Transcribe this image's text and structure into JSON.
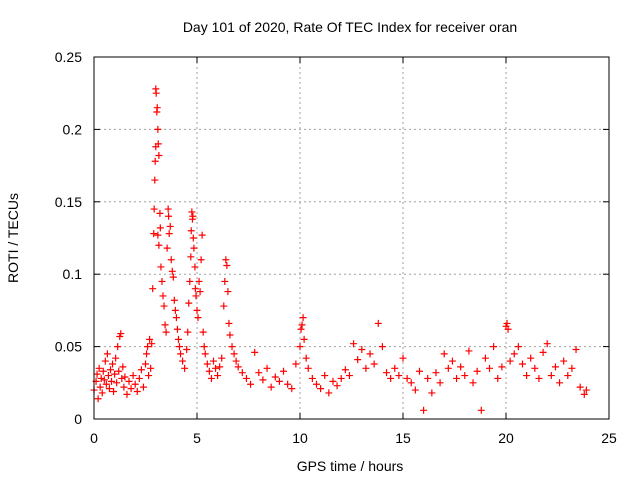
{
  "chart_data": {
    "type": "scatter",
    "title": "Day 101 of 2020, Rate Of TEC Index for receiver oran",
    "xlabel": "GPS time / hours",
    "ylabel": "ROTI / TECUs",
    "xlim": [
      0,
      25
    ],
    "ylim": [
      0,
      0.25
    ],
    "x_ticks": [
      0,
      5,
      10,
      15,
      20,
      25
    ],
    "x_tick_labels": [
      "0",
      "5",
      "10",
      "15",
      "20",
      "25"
    ],
    "y_ticks": [
      0,
      0.05,
      0.1,
      0.15,
      0.2,
      0.25
    ],
    "y_tick_labels": [
      "0",
      "0.05",
      "0.1",
      "0.15",
      "0.2",
      "0.25"
    ],
    "grid": true,
    "marker": "+",
    "series": [
      {
        "color": "#ff0000",
        "points": [
          [
            0.0,
            0.02
          ],
          [
            0.1,
            0.026
          ],
          [
            0.15,
            0.031
          ],
          [
            0.2,
            0.014
          ],
          [
            0.25,
            0.035
          ],
          [
            0.3,
            0.022
          ],
          [
            0.35,
            0.028
          ],
          [
            0.4,
            0.018
          ],
          [
            0.45,
            0.033
          ],
          [
            0.5,
            0.027
          ],
          [
            0.55,
            0.04
          ],
          [
            0.6,
            0.024
          ],
          [
            0.65,
            0.045
          ],
          [
            0.7,
            0.03
          ],
          [
            0.75,
            0.021
          ],
          [
            0.8,
            0.034
          ],
          [
            0.85,
            0.026
          ],
          [
            0.9,
            0.038
          ],
          [
            0.95,
            0.019
          ],
          [
            1.0,
            0.031
          ],
          [
            1.05,
            0.042
          ],
          [
            1.1,
            0.025
          ],
          [
            1.15,
            0.05
          ],
          [
            1.2,
            0.033
          ],
          [
            1.25,
            0.057
          ],
          [
            1.3,
            0.059
          ],
          [
            1.35,
            0.028
          ],
          [
            1.4,
            0.036
          ],
          [
            1.45,
            0.022
          ],
          [
            1.5,
            0.029
          ],
          [
            1.6,
            0.017
          ],
          [
            1.7,
            0.026
          ],
          [
            1.8,
            0.021
          ],
          [
            1.9,
            0.03
          ],
          [
            2.0,
            0.024
          ],
          [
            2.1,
            0.019
          ],
          [
            2.2,
            0.028
          ],
          [
            2.3,
            0.034
          ],
          [
            2.4,
            0.022
          ],
          [
            2.5,
            0.038
          ],
          [
            2.55,
            0.045
          ],
          [
            2.6,
            0.05
          ],
          [
            2.65,
            0.03
          ],
          [
            2.7,
            0.055
          ],
          [
            2.75,
            0.035
          ],
          [
            2.8,
            0.052
          ],
          [
            2.85,
            0.09
          ],
          [
            2.9,
            0.128
          ],
          [
            2.92,
            0.145
          ],
          [
            2.95,
            0.165
          ],
          [
            2.97,
            0.178
          ],
          [
            3.0,
            0.188
          ],
          [
            3.0,
            0.228
          ],
          [
            3.02,
            0.225
          ],
          [
            3.05,
            0.212
          ],
          [
            3.07,
            0.215
          ],
          [
            3.1,
            0.2
          ],
          [
            3.12,
            0.19
          ],
          [
            3.15,
            0.182
          ],
          [
            3.1,
            0.127
          ],
          [
            3.15,
            0.12
          ],
          [
            3.2,
            0.142
          ],
          [
            3.22,
            0.132
          ],
          [
            3.25,
            0.105
          ],
          [
            3.3,
            0.095
          ],
          [
            3.35,
            0.085
          ],
          [
            3.4,
            0.078
          ],
          [
            3.45,
            0.065
          ],
          [
            3.5,
            0.06
          ],
          [
            3.55,
            0.118
          ],
          [
            3.6,
            0.145
          ],
          [
            3.62,
            0.14
          ],
          [
            3.65,
            0.128
          ],
          [
            3.7,
            0.133
          ],
          [
            3.75,
            0.11
          ],
          [
            3.8,
            0.102
          ],
          [
            3.85,
            0.098
          ],
          [
            3.9,
            0.082
          ],
          [
            3.95,
            0.075
          ],
          [
            4.0,
            0.07
          ],
          [
            4.05,
            0.062
          ],
          [
            4.1,
            0.055
          ],
          [
            4.15,
            0.05
          ],
          [
            4.2,
            0.045
          ],
          [
            4.3,
            0.04
          ],
          [
            4.4,
            0.035
          ],
          [
            4.5,
            0.048
          ],
          [
            4.55,
            0.06
          ],
          [
            4.6,
            0.08
          ],
          [
            4.65,
            0.095
          ],
          [
            4.7,
            0.112
          ],
          [
            4.72,
            0.13
          ],
          [
            4.75,
            0.143
          ],
          [
            4.78,
            0.138
          ],
          [
            4.8,
            0.14
          ],
          [
            4.82,
            0.125
          ],
          [
            4.85,
            0.118
          ],
          [
            4.9,
            0.105
          ],
          [
            4.92,
            0.09
          ],
          [
            4.95,
            0.085
          ],
          [
            5.0,
            0.075
          ],
          [
            5.05,
            0.07
          ],
          [
            5.1,
            0.095
          ],
          [
            5.15,
            0.088
          ],
          [
            5.2,
            0.11
          ],
          [
            5.25,
            0.127
          ],
          [
            5.3,
            0.06
          ],
          [
            5.35,
            0.05
          ],
          [
            5.4,
            0.045
          ],
          [
            5.5,
            0.038
          ],
          [
            5.6,
            0.033
          ],
          [
            5.7,
            0.028
          ],
          [
            5.8,
            0.04
          ],
          [
            5.9,
            0.035
          ],
          [
            6.0,
            0.03
          ],
          [
            6.1,
            0.036
          ],
          [
            6.2,
            0.042
          ],
          [
            6.3,
            0.078
          ],
          [
            6.35,
            0.095
          ],
          [
            6.4,
            0.11
          ],
          [
            6.45,
            0.106
          ],
          [
            6.5,
            0.088
          ],
          [
            6.55,
            0.066
          ],
          [
            6.6,
            0.058
          ],
          [
            6.7,
            0.05
          ],
          [
            6.8,
            0.045
          ],
          [
            6.9,
            0.04
          ],
          [
            7.0,
            0.036
          ],
          [
            7.2,
            0.032
          ],
          [
            7.4,
            0.028
          ],
          [
            7.6,
            0.024
          ],
          [
            7.8,
            0.046
          ],
          [
            8.0,
            0.032
          ],
          [
            8.2,
            0.027
          ],
          [
            8.4,
            0.035
          ],
          [
            8.6,
            0.022
          ],
          [
            8.8,
            0.029
          ],
          [
            9.0,
            0.026
          ],
          [
            9.2,
            0.033
          ],
          [
            9.4,
            0.024
          ],
          [
            9.6,
            0.021
          ],
          [
            9.8,
            0.038
          ],
          [
            10.0,
            0.05
          ],
          [
            10.05,
            0.062
          ],
          [
            10.1,
            0.065
          ],
          [
            10.15,
            0.07
          ],
          [
            10.2,
            0.055
          ],
          [
            10.3,
            0.042
          ],
          [
            10.4,
            0.035
          ],
          [
            10.6,
            0.028
          ],
          [
            10.8,
            0.024
          ],
          [
            11.0,
            0.021
          ],
          [
            11.2,
            0.03
          ],
          [
            11.4,
            0.018
          ],
          [
            11.6,
            0.026
          ],
          [
            11.8,
            0.023
          ],
          [
            12.0,
            0.028
          ],
          [
            12.2,
            0.034
          ],
          [
            12.4,
            0.03
          ],
          [
            12.6,
            0.052
          ],
          [
            12.8,
            0.041
          ],
          [
            13.0,
            0.048
          ],
          [
            13.2,
            0.035
          ],
          [
            13.4,
            0.045
          ],
          [
            13.6,
            0.038
          ],
          [
            13.8,
            0.066
          ],
          [
            14.0,
            0.05
          ],
          [
            14.2,
            0.032
          ],
          [
            14.4,
            0.028
          ],
          [
            14.6,
            0.035
          ],
          [
            14.8,
            0.03
          ],
          [
            15.0,
            0.042
          ],
          [
            15.2,
            0.028
          ],
          [
            15.4,
            0.025
          ],
          [
            15.6,
            0.02
          ],
          [
            15.8,
            0.033
          ],
          [
            16.0,
            0.006
          ],
          [
            16.2,
            0.028
          ],
          [
            16.4,
            0.018
          ],
          [
            16.6,
            0.032
          ],
          [
            16.8,
            0.025
          ],
          [
            17.0,
            0.045
          ],
          [
            17.2,
            0.035
          ],
          [
            17.4,
            0.04
          ],
          [
            17.6,
            0.028
          ],
          [
            17.8,
            0.036
          ],
          [
            18.0,
            0.03
          ],
          [
            18.2,
            0.047
          ],
          [
            18.4,
            0.025
          ],
          [
            18.6,
            0.033
          ],
          [
            18.8,
            0.006
          ],
          [
            19.0,
            0.042
          ],
          [
            19.2,
            0.035
          ],
          [
            19.4,
            0.05
          ],
          [
            19.6,
            0.028
          ],
          [
            19.8,
            0.036
          ],
          [
            20.0,
            0.064
          ],
          [
            20.05,
            0.066
          ],
          [
            20.1,
            0.062
          ],
          [
            20.2,
            0.04
          ],
          [
            20.4,
            0.045
          ],
          [
            20.6,
            0.05
          ],
          [
            20.8,
            0.038
          ],
          [
            21.0,
            0.03
          ],
          [
            21.2,
            0.042
          ],
          [
            21.4,
            0.035
          ],
          [
            21.6,
            0.028
          ],
          [
            21.8,
            0.046
          ],
          [
            22.0,
            0.052
          ],
          [
            22.2,
            0.03
          ],
          [
            22.4,
            0.036
          ],
          [
            22.6,
            0.025
          ],
          [
            22.8,
            0.04
          ],
          [
            23.0,
            0.03
          ],
          [
            23.2,
            0.035
          ],
          [
            23.4,
            0.048
          ],
          [
            23.6,
            0.022
          ],
          [
            23.8,
            0.017
          ],
          [
            23.9,
            0.02
          ]
        ]
      }
    ]
  }
}
